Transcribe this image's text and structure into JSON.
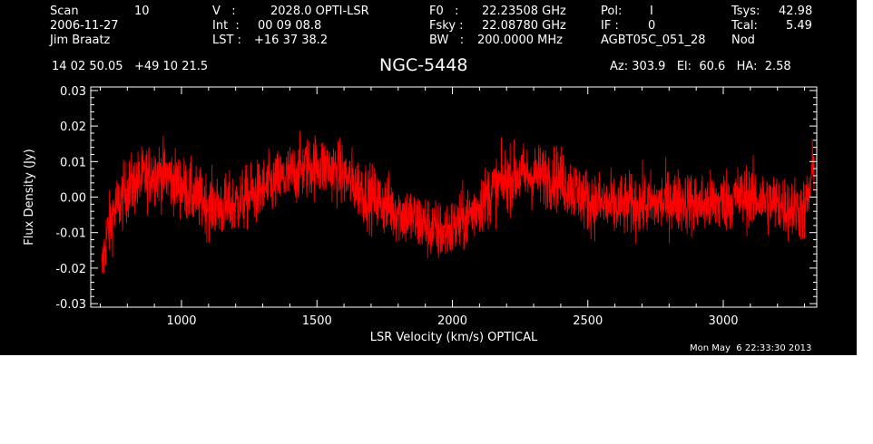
{
  "header": {
    "col1": {
      "scan_label": "Scan",
      "scan_value": "10",
      "date": "2006-11-27",
      "observer": "Jim Braatz"
    },
    "col2": {
      "v_label": "V   :",
      "v_value": "2028.0 OPTI-LSR",
      "int_label": "Int  :",
      "int_value": "00 09 08.8",
      "lst_label": "LST :",
      "lst_value": "+16 37 38.2"
    },
    "col3": {
      "f0_label": "F0   :",
      "f0_value": "22.23508 GHz",
      "fsky_label": "Fsky :",
      "fsky_value": "22.08780 GHz",
      "bw_label": "BW   :",
      "bw_value": "200.0000 MHz"
    },
    "col4": {
      "pol_label": "Pol:",
      "pol_value": "I",
      "if_label": "IF :",
      "if_value": "0",
      "project": "AGBT05C_051_28"
    },
    "col5": {
      "tsys_label": "Tsys:",
      "tsys_value": "42.98",
      "tcal_label": "Tcal:",
      "tcal_value": "5.49",
      "mode": "Nod"
    },
    "coords": "14 02 50.05   +49 10 21.5",
    "source": "NGC-5448",
    "pointing": "Az: 303.9   El:  60.6   HA:  2.58",
    "timestamp": "Mon May  6 22:33:30 2013"
  },
  "chart_data": {
    "type": "line",
    "xlabel": "LSR Velocity (km/s) OPTICAL",
    "ylabel": "Flux Density (Jy)",
    "xlim": [
      665,
      3345
    ],
    "ylim": [
      -0.031,
      0.031
    ],
    "x_ticks": [
      1000,
      1500,
      2000,
      2500,
      3000
    ],
    "x_tick_labels": [
      "1000",
      "1500",
      "2000",
      "2500",
      "3000"
    ],
    "y_ticks": [
      -0.03,
      -0.02,
      -0.01,
      0.0,
      0.01,
      0.02,
      0.03
    ],
    "y_tick_labels": [
      "-0.03",
      "-0.02",
      "-0.01",
      "0.00",
      "0.01",
      "0.02",
      "0.03"
    ],
    "series_color": "#ff0000",
    "series": [
      {
        "x": [
          705,
          720,
          750,
          800,
          850,
          900,
          950,
          1000,
          1050,
          1100,
          1150,
          1200,
          1250,
          1300,
          1350,
          1400,
          1450,
          1500,
          1550,
          1600,
          1650,
          1700,
          1750,
          1800,
          1850,
          1900,
          1950,
          2000,
          2050,
          2100,
          2150,
          2200,
          2250,
          2300,
          2350,
          2400,
          2450,
          2500,
          2550,
          2600,
          2650,
          2700,
          2750,
          2800,
          2850,
          2900,
          2950,
          3000,
          3050,
          3100,
          3150,
          3200,
          3250,
          3300,
          3320,
          3335
        ],
        "y": [
          -0.022,
          -0.012,
          -0.004,
          0.002,
          0.005,
          0.007,
          0.006,
          0.003,
          0.0,
          -0.002,
          -0.003,
          -0.002,
          0.0,
          0.002,
          0.004,
          0.006,
          0.008,
          0.009,
          0.008,
          0.006,
          0.003,
          0.0,
          -0.002,
          -0.004,
          -0.006,
          -0.008,
          -0.01,
          -0.009,
          -0.006,
          -0.002,
          0.002,
          0.005,
          0.006,
          0.006,
          0.006,
          0.005,
          0.002,
          -0.001,
          -0.002,
          -0.003,
          -0.002,
          -0.002,
          -0.002,
          -0.001,
          -0.001,
          -0.002,
          -0.002,
          -0.001,
          0.0,
          0.0,
          -0.001,
          -0.002,
          -0.003,
          -0.004,
          0.002,
          0.01
        ],
        "noise_rms": 0.0045
      }
    ]
  }
}
